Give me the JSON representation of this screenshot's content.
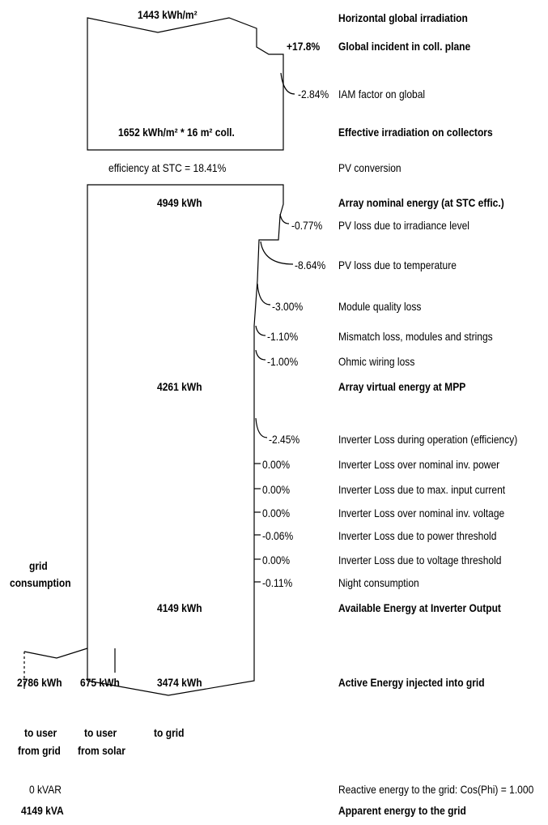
{
  "top": {
    "value": "1443 kWh/m²",
    "label": "Horizontal global irradiation"
  },
  "incident": {
    "value": "+17.8%",
    "label": "Global incident in coll. plane"
  },
  "iam": {
    "value": "-2.84%",
    "label": "IAM factor on global"
  },
  "effective": {
    "value": "1652 kWh/m² * 16 m² coll.",
    "label": "Effective irradiation on collectors"
  },
  "conversion": {
    "value": "efficiency at STC = 18.41%",
    "label": "PV conversion"
  },
  "nominal": {
    "value": "4949 kWh",
    "label": "Array nominal energy (at STC effic.)"
  },
  "array_losses": [
    {
      "value": "-0.77%",
      "label": "PV loss due to irradiance level"
    },
    {
      "value": "-8.64%",
      "label": "PV loss due to temperature"
    },
    {
      "value": "-3.00%",
      "label": "Module quality loss"
    },
    {
      "value": "-1.10%",
      "label": "Mismatch loss, modules and strings"
    },
    {
      "value": "-1.00%",
      "label": "Ohmic wiring loss"
    }
  ],
  "mpp": {
    "value": "4261 kWh",
    "label": "Array virtual energy at MPP"
  },
  "inverter_losses": [
    {
      "value": "-2.45%",
      "label": "Inverter Loss during operation (efficiency)"
    },
    {
      "value": "0.00%",
      "label": "Inverter Loss over nominal inv. power"
    },
    {
      "value": "0.00%",
      "label": "Inverter Loss due to max. input current"
    },
    {
      "value": "0.00%",
      "label": "Inverter Loss over nominal inv. voltage"
    },
    {
      "value": "-0.06%",
      "label": "Inverter Loss due to power threshold"
    },
    {
      "value": "0.00%",
      "label": "Inverter Loss due to voltage threshold"
    },
    {
      "value": "-0.11%",
      "label": "Night consumption"
    }
  ],
  "grid_consumption": {
    "line1": "grid",
    "line2": "consumption"
  },
  "available": {
    "value": "4149 kWh",
    "label": "Available Energy at Inverter Output"
  },
  "split": {
    "grid_user_value": "2786 kWh",
    "solar_user_value": "675 kWh",
    "to_grid_value": "3474 kWh",
    "label": "Active Energy injected into grid"
  },
  "destinations": {
    "user_grid_1": "to user",
    "user_grid_2": "from grid",
    "user_solar_1": "to user",
    "user_solar_2": "from solar",
    "to_grid": "to grid"
  },
  "reactive": {
    "value": "0 kVAR",
    "label": "Reactive energy to the grid: Cos(Phi) = 1.000"
  },
  "apparent": {
    "value": "4149 kVA",
    "label": "Apparent energy to the grid"
  }
}
